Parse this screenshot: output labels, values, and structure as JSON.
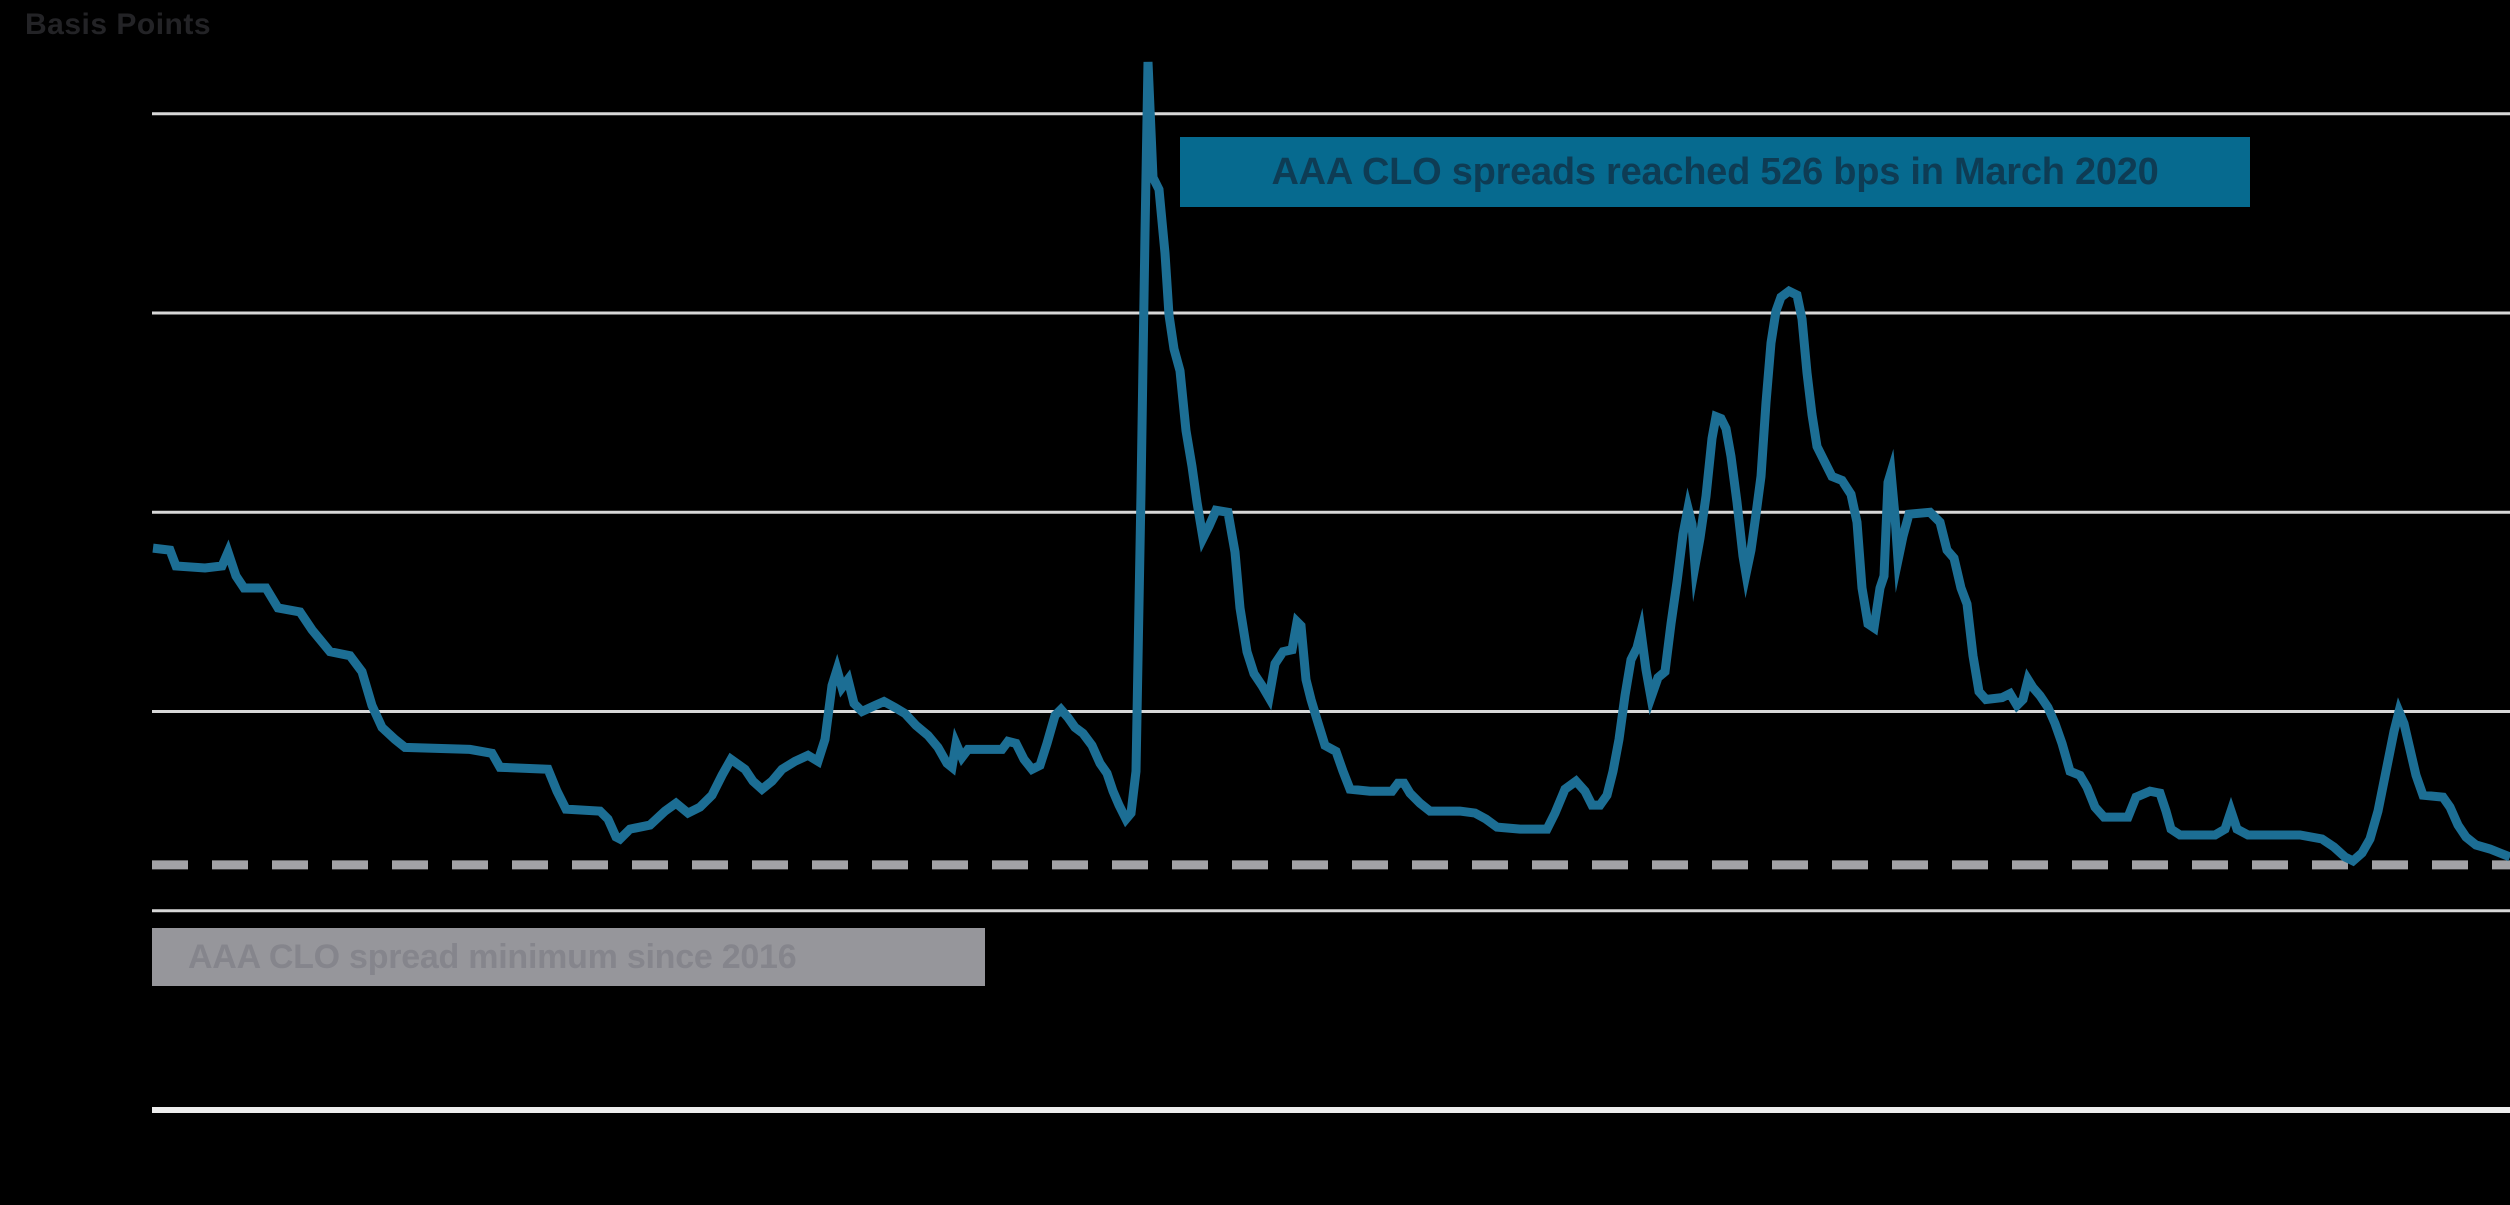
{
  "title": "Basis Points",
  "annotations": {
    "peak": {
      "text": "AAA CLO spreads reached 526 bps in March 2020"
    },
    "minimum": {
      "text": "AAA CLO spread minimum since 2016"
    }
  },
  "colors": {
    "background": "#000000",
    "line": "#1C6E94",
    "peak_box": "#066A8F",
    "peak_box_text": "#0E3C54",
    "min_box": "#96969B",
    "min_box_text": "#85858C",
    "gridline": "#D8D8D8",
    "axis_baseline": "#EDEDED",
    "dashed_min_line": "#A2A2A6",
    "title_text": "#232326"
  },
  "chart_data": {
    "type": "line",
    "title": "",
    "ylabel": "Basis Points",
    "xlabel": "",
    "x_tick_labels": [],
    "ylim": [
      0,
      540
    ],
    "grid": true,
    "legend": false,
    "gridline_values": [
      500,
      400,
      300,
      200,
      100
    ],
    "baseline_value": 0,
    "min_dashed_line": {
      "value": 123,
      "label": "AAA CLO spread minimum since 2016"
    },
    "peak_marker": {
      "value": 526,
      "label": "March 2020"
    },
    "series": [
      {
        "name": "AAA CLO spread (bps)",
        "points_format": "[x_pixel_position, basis_points]",
        "points": [
          [
            153,
            282
          ],
          [
            170,
            281
          ],
          [
            176,
            273
          ],
          [
            205,
            272
          ],
          [
            222,
            273
          ],
          [
            228,
            280
          ],
          [
            236,
            268
          ],
          [
            244,
            262
          ],
          [
            266,
            262
          ],
          [
            278,
            252
          ],
          [
            300,
            250
          ],
          [
            312,
            241
          ],
          [
            330,
            230
          ],
          [
            350,
            228
          ],
          [
            362,
            220
          ],
          [
            372,
            203
          ],
          [
            382,
            192
          ],
          [
            395,
            186
          ],
          [
            405,
            182
          ],
          [
            470,
            181
          ],
          [
            492,
            179
          ],
          [
            500,
            172
          ],
          [
            548,
            171
          ],
          [
            557,
            160
          ],
          [
            566,
            151
          ],
          [
            600,
            150
          ],
          [
            608,
            146
          ],
          [
            616,
            137
          ],
          [
            620,
            136
          ],
          [
            630,
            141
          ],
          [
            650,
            143
          ],
          [
            665,
            150
          ],
          [
            676,
            154
          ],
          [
            688,
            149
          ],
          [
            700,
            152
          ],
          [
            712,
            158
          ],
          [
            722,
            168
          ],
          [
            731,
            176
          ],
          [
            745,
            171
          ],
          [
            753,
            165
          ],
          [
            762,
            161
          ],
          [
            772,
            165
          ],
          [
            782,
            171
          ],
          [
            795,
            175
          ],
          [
            808,
            178
          ],
          [
            818,
            175
          ],
          [
            825,
            186
          ],
          [
            832,
            213
          ],
          [
            837,
            221
          ],
          [
            842,
            212
          ],
          [
            848,
            216
          ],
          [
            854,
            204
          ],
          [
            862,
            200
          ],
          [
            875,
            203
          ],
          [
            884,
            205
          ],
          [
            895,
            202
          ],
          [
            905,
            199
          ],
          [
            916,
            193
          ],
          [
            928,
            188
          ],
          [
            938,
            182
          ],
          [
            947,
            174
          ],
          [
            952,
            172
          ],
          [
            956,
            184
          ],
          [
            962,
            177
          ],
          [
            968,
            181
          ],
          [
            1002,
            181
          ],
          [
            1008,
            185
          ],
          [
            1016,
            184
          ],
          [
            1024,
            176
          ],
          [
            1032,
            171
          ],
          [
            1040,
            173
          ],
          [
            1047,
            184
          ],
          [
            1055,
            198
          ],
          [
            1061,
            201
          ],
          [
            1068,
            197
          ],
          [
            1075,
            192
          ],
          [
            1083,
            189
          ],
          [
            1092,
            183
          ],
          [
            1100,
            174
          ],
          [
            1107,
            169
          ],
          [
            1113,
            160
          ],
          [
            1119,
            153
          ],
          [
            1126,
            146
          ],
          [
            1131,
            149
          ],
          [
            1136,
            170
          ],
          [
            1141,
            310
          ],
          [
            1145,
            440
          ],
          [
            1148,
            526
          ],
          [
            1153,
            468
          ],
          [
            1159,
            462
          ],
          [
            1165,
            430
          ],
          [
            1169,
            399
          ],
          [
            1174,
            382
          ],
          [
            1180,
            371
          ],
          [
            1186,
            341
          ],
          [
            1192,
            323
          ],
          [
            1197,
            305
          ],
          [
            1203,
            287
          ],
          [
            1209,
            293
          ],
          [
            1216,
            301
          ],
          [
            1228,
            300
          ],
          [
            1235,
            280
          ],
          [
            1240,
            252
          ],
          [
            1247,
            230
          ],
          [
            1254,
            219
          ],
          [
            1262,
            213
          ],
          [
            1269,
            207
          ],
          [
            1275,
            224
          ],
          [
            1283,
            230
          ],
          [
            1292,
            231
          ],
          [
            1297,
            245
          ],
          [
            1301,
            243
          ],
          [
            1306,
            216
          ],
          [
            1311,
            206
          ],
          [
            1317,
            196
          ],
          [
            1325,
            183
          ],
          [
            1336,
            180
          ],
          [
            1343,
            170
          ],
          [
            1350,
            161
          ],
          [
            1370,
            160
          ],
          [
            1392,
            160
          ],
          [
            1398,
            164
          ],
          [
            1404,
            164
          ],
          [
            1410,
            159
          ],
          [
            1420,
            154
          ],
          [
            1430,
            150
          ],
          [
            1460,
            150
          ],
          [
            1475,
            149
          ],
          [
            1486,
            146
          ],
          [
            1497,
            142
          ],
          [
            1520,
            141
          ],
          [
            1547,
            141
          ],
          [
            1555,
            149
          ],
          [
            1565,
            161
          ],
          [
            1576,
            165
          ],
          [
            1585,
            160
          ],
          [
            1592,
            153
          ],
          [
            1600,
            153
          ],
          [
            1607,
            158
          ],
          [
            1613,
            170
          ],
          [
            1619,
            186
          ],
          [
            1625,
            208
          ],
          [
            1631,
            226
          ],
          [
            1637,
            232
          ],
          [
            1641,
            240
          ],
          [
            1646,
            221
          ],
          [
            1651,
            207
          ],
          [
            1658,
            217
          ],
          [
            1665,
            220
          ],
          [
            1671,
            244
          ],
          [
            1677,
            265
          ],
          [
            1683,
            289
          ],
          [
            1688,
            302
          ],
          [
            1692,
            294
          ],
          [
            1695,
            273
          ],
          [
            1700,
            287
          ],
          [
            1706,
            308
          ],
          [
            1712,
            337
          ],
          [
            1716,
            348
          ],
          [
            1721,
            347
          ],
          [
            1726,
            342
          ],
          [
            1731,
            328
          ],
          [
            1737,
            305
          ],
          [
            1743,
            278
          ],
          [
            1746,
            269
          ],
          [
            1751,
            281
          ],
          [
            1756,
            299
          ],
          [
            1761,
            318
          ],
          [
            1766,
            355
          ],
          [
            1771,
            385
          ],
          [
            1776,
            401
          ],
          [
            1781,
            408
          ],
          [
            1789,
            411
          ],
          [
            1797,
            409
          ],
          [
            1802,
            397
          ],
          [
            1807,
            370
          ],
          [
            1812,
            349
          ],
          [
            1817,
            333
          ],
          [
            1823,
            327
          ],
          [
            1832,
            318
          ],
          [
            1842,
            316
          ],
          [
            1851,
            309
          ],
          [
            1857,
            295
          ],
          [
            1862,
            262
          ],
          [
            1868,
            244
          ],
          [
            1874,
            242
          ],
          [
            1880,
            262
          ],
          [
            1884,
            268
          ],
          [
            1888,
            315
          ],
          [
            1891,
            320
          ],
          [
            1895,
            298
          ],
          [
            1898,
            276
          ],
          [
            1903,
            288
          ],
          [
            1909,
            299
          ],
          [
            1930,
            300
          ],
          [
            1940,
            295
          ],
          [
            1947,
            281
          ],
          [
            1954,
            277
          ],
          [
            1961,
            262
          ],
          [
            1967,
            254
          ],
          [
            1973,
            228
          ],
          [
            1979,
            210
          ],
          [
            1986,
            206
          ],
          [
            2002,
            207
          ],
          [
            2010,
            209
          ],
          [
            2017,
            203
          ],
          [
            2023,
            206
          ],
          [
            2028,
            216
          ],
          [
            2033,
            212
          ],
          [
            2040,
            208
          ],
          [
            2048,
            202
          ],
          [
            2055,
            194
          ],
          [
            2062,
            184
          ],
          [
            2070,
            170
          ],
          [
            2080,
            168
          ],
          [
            2087,
            162
          ],
          [
            2095,
            152
          ],
          [
            2104,
            147
          ],
          [
            2128,
            147
          ],
          [
            2136,
            157
          ],
          [
            2150,
            160
          ],
          [
            2160,
            159
          ],
          [
            2166,
            150
          ],
          [
            2171,
            141
          ],
          [
            2180,
            138
          ],
          [
            2215,
            138
          ],
          [
            2225,
            141
          ],
          [
            2231,
            150
          ],
          [
            2237,
            141
          ],
          [
            2248,
            138
          ],
          [
            2300,
            138
          ],
          [
            2322,
            136
          ],
          [
            2334,
            132
          ],
          [
            2345,
            127
          ],
          [
            2353,
            125
          ],
          [
            2362,
            129
          ],
          [
            2370,
            136
          ],
          [
            2378,
            150
          ],
          [
            2386,
            170
          ],
          [
            2394,
            190
          ],
          [
            2399,
            200
          ],
          [
            2404,
            194
          ],
          [
            2410,
            181
          ],
          [
            2416,
            168
          ],
          [
            2423,
            158
          ],
          [
            2443,
            157
          ],
          [
            2450,
            152
          ],
          [
            2458,
            143
          ],
          [
            2466,
            137
          ],
          [
            2476,
            133
          ],
          [
            2490,
            131
          ],
          [
            2500,
            129
          ],
          [
            2510,
            127
          ]
        ]
      }
    ]
  }
}
